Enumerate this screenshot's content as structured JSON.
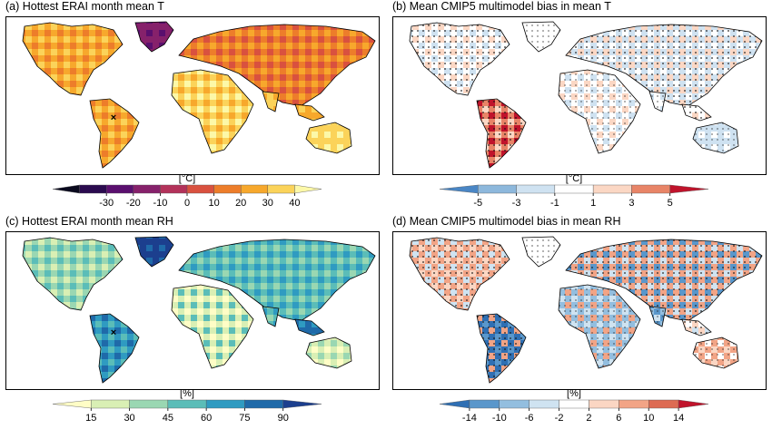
{
  "panels": [
    {
      "title": "(a) Hottest ERAI month mean T",
      "variant": "temp",
      "marker": "×",
      "stippled": false,
      "colorbar": {
        "unit": "[°C]",
        "ticks": [
          "-30",
          "-20",
          "-10",
          "0",
          "10",
          "20",
          "30",
          "40"
        ],
        "colors": [
          "#0a0a1e",
          "#2b0b4f",
          "#5a0f6e",
          "#86216b",
          "#b3325a",
          "#d9513f",
          "#ed7d2a",
          "#f7a82c",
          "#fbd35a",
          "#fcf8a8"
        ]
      }
    },
    {
      "title": "(b) Mean CMIP5 multimodel bias in mean T",
      "variant": "tbias",
      "stippled": true,
      "colorbar": {
        "unit": "[°C]",
        "ticks": [
          "-5",
          "-3",
          "-1",
          "1",
          "3",
          "5"
        ],
        "colors": [
          "#4a86c5",
          "#8db8dc",
          "#cfe2f1",
          "#ffffff",
          "#fbd7c4",
          "#e88467",
          "#c0132b"
        ]
      }
    },
    {
      "title": "(c) Hottest ERAI month mean RH",
      "variant": "rh",
      "marker": "×",
      "stippled": false,
      "colorbar": {
        "unit": "[%]",
        "ticks": [
          "15",
          "30",
          "45",
          "60",
          "75",
          "90"
        ],
        "colors": [
          "#fffdc6",
          "#d9efb4",
          "#9ad7b2",
          "#5bbdb8",
          "#2f9bc1",
          "#1f6aa9",
          "#1c3f8e"
        ]
      }
    },
    {
      "title": "(d) Mean CMIP5 multimodel bias in mean RH",
      "variant": "rhbias",
      "stippled": true,
      "colorbar": {
        "unit": "[%]",
        "ticks": [
          "-14",
          "-10",
          "-6",
          "-2",
          "2",
          "6",
          "10",
          "14"
        ],
        "colors": [
          "#2f6fb3",
          "#5a97cb",
          "#93bedf",
          "#cfe3f1",
          "#ffffff",
          "#fbd6c3",
          "#f2a486",
          "#dd6b53",
          "#c0132b"
        ]
      }
    }
  ]
}
